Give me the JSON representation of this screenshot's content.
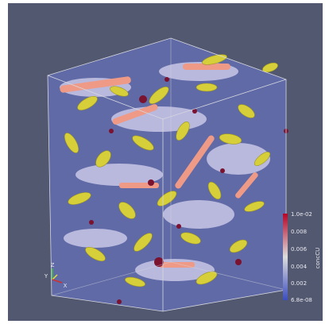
{
  "colorbar": {
    "title": "concCU",
    "labels": [
      "1.0e-02",
      "0.008",
      "0.006",
      "0.004",
      "0.002",
      "6.8e-08"
    ]
  },
  "axes": {
    "labels": [
      "Z",
      "Y",
      "X"
    ]
  }
}
